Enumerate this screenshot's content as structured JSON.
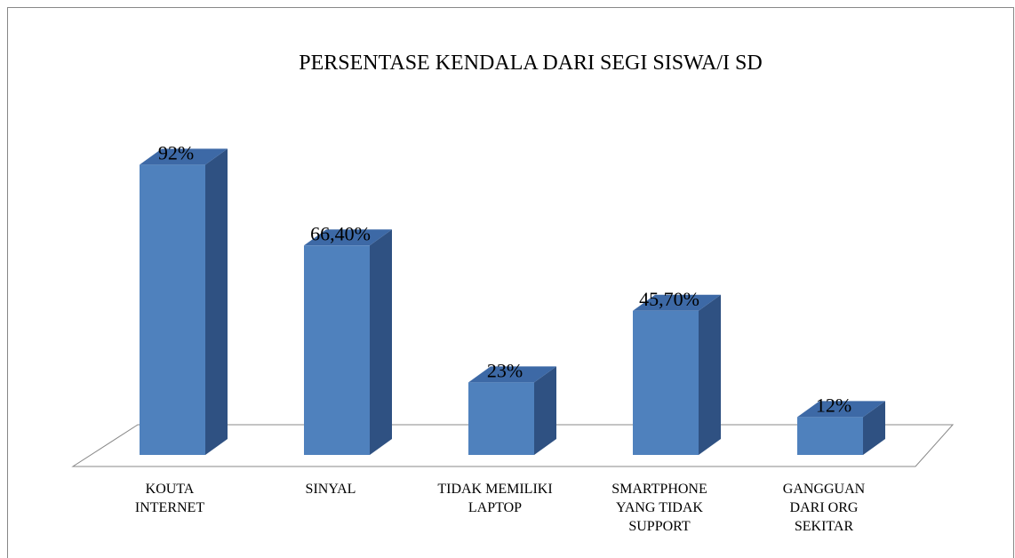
{
  "chart_data": {
    "type": "bar3d",
    "title": "PERSENTASE KENDALA DARI SEGI SISWA/I SD",
    "categories": [
      "KOUTA INTERNET",
      "SINYAL",
      "TIDAK MEMILIKI LAPTOP",
      "SMARTPHONE YANG TIDAK SUPPORT",
      "GANGGUAN DARI ORG SEKITAR"
    ],
    "values": [
      92,
      66.4,
      23,
      45.7,
      12
    ],
    "value_labels": [
      "92%",
      "66,40%",
      "23%",
      "45,70%",
      "12%"
    ],
    "color": "#4f81bd"
  }
}
